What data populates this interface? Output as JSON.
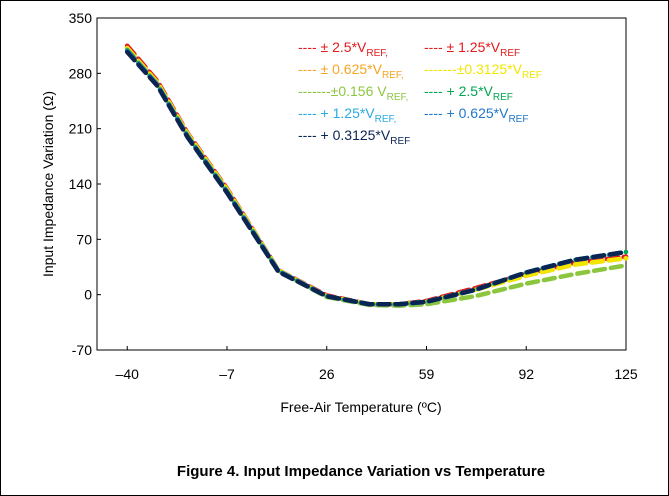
{
  "chart_data": {
    "type": "line",
    "caption": "Figure 4. Input Impedance Variation vs Temperature",
    "xlabel": "Free-Air Temperature (ºC)",
    "ylabel": "Input Impedance Variation (Ω)",
    "x": [
      -40,
      -30,
      -20,
      -7,
      10,
      26,
      40,
      50,
      59,
      75,
      92,
      108,
      125
    ],
    "xlim": [
      -50,
      125
    ],
    "xticks": [
      {
        "value": -40,
        "label": "–40"
      },
      {
        "value": -7,
        "label": "–7"
      },
      26,
      59,
      92,
      125
    ],
    "ylim": [
      -70,
      350
    ],
    "yticks": [
      -70,
      0,
      70,
      140,
      210,
      280,
      350
    ],
    "grid": false,
    "series": [
      {
        "name": "---- ± 2.5*V",
        "subscript": "REF,",
        "color": "#e41a1c",
        "values": [
          315,
          270,
          204,
          134,
          31,
          -1,
          -12,
          -12,
          -8,
          8,
          26,
          40,
          48
        ]
      },
      {
        "name": "---- ± 1.25*V",
        "subscript": "REF",
        "color": "#e41a1c",
        "values": [
          314,
          269,
          204,
          134,
          31,
          -1,
          -12,
          -12,
          -8,
          8,
          26,
          40,
          48
        ]
      },
      {
        "name": "---- ± 0.625*V",
        "subscript": "REF,",
        "color": "#f5a623",
        "values": [
          312,
          268,
          203,
          133,
          31,
          -2,
          -12,
          -12,
          -9,
          6,
          24,
          38,
          46
        ]
      },
      {
        "name": "-------±0.3125*V",
        "subscript": "REF",
        "color": "#f2e600",
        "values": [
          312,
          268,
          203,
          133,
          31,
          -2,
          -12,
          -12,
          -9,
          6,
          24,
          38,
          46
        ]
      },
      {
        "name": "-------±0.156 V",
        "subscript": "REF,",
        "color": "#8cc63f",
        "values": [
          310,
          266,
          201,
          131,
          30,
          -3,
          -13,
          -14,
          -12,
          -2,
          14,
          26,
          37
        ]
      },
      {
        "name": "---- + 2.5*V",
        "subscript": "REF",
        "color": "#00a651",
        "values": [
          309,
          265,
          200,
          130,
          30,
          -2,
          -12,
          -12,
          -9,
          6,
          28,
          44,
          54
        ]
      },
      {
        "name": "---- + 1.25*V",
        "subscript": "REF,",
        "color": "#29abe2",
        "values": [
          308,
          265,
          200,
          130,
          30,
          -2,
          -12,
          -12,
          -9,
          6,
          28,
          44,
          54
        ]
      },
      {
        "name": "---- + 0.625*V",
        "subscript": "REF",
        "color": "#1f78c8",
        "values": [
          308,
          265,
          200,
          130,
          30,
          -2,
          -12,
          -12,
          -9,
          6,
          28,
          44,
          54
        ]
      },
      {
        "name": "---- + 0.3125*V",
        "subscript": "REF",
        "color": "#0b2553",
        "values": [
          307,
          264,
          199,
          129,
          29,
          -2,
          -12,
          -12,
          -9,
          6,
          28,
          44,
          54
        ]
      }
    ]
  }
}
